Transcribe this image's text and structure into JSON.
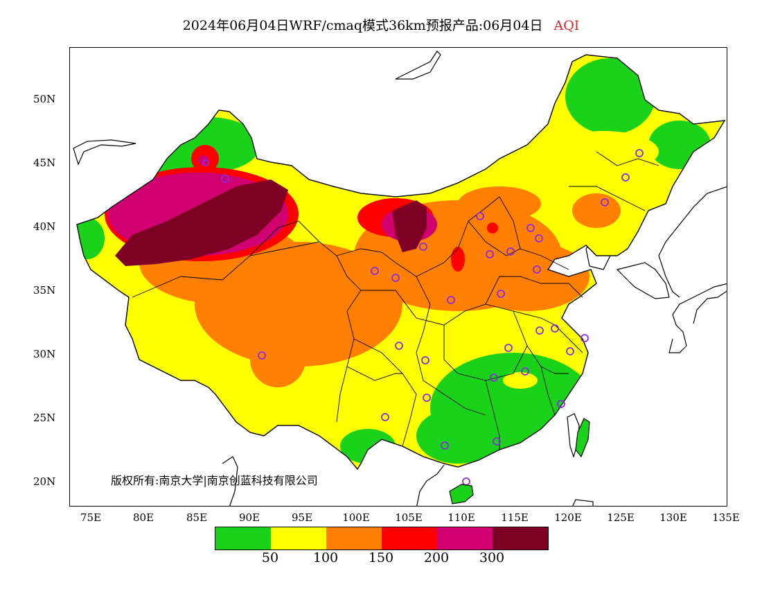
{
  "header": {
    "title": "2024年06月04日WRF/cmaq模式36km预报产品:06月04日",
    "variable": "AQI",
    "variable_color": "#e0202a"
  },
  "axes": {
    "lat_labels": [
      "50N",
      "45N",
      "40N",
      "35N",
      "30N",
      "25N",
      "20N"
    ],
    "lon_labels": [
      "75E",
      "80E",
      "85E",
      "90E",
      "95E",
      "100E",
      "105E",
      "110E",
      "115E",
      "120E",
      "125E",
      "130E",
      "135E"
    ]
  },
  "copyright": "版权所有:南京大学|南京创蓝科技有限公司",
  "legend": {
    "colors": [
      "#19d219",
      "#ffff00",
      "#ff8000",
      "#ff0000",
      "#d00070",
      "#7f0025"
    ],
    "ticks": [
      "50",
      "100",
      "150",
      "200",
      "300"
    ]
  },
  "icons": {
    "station": "purple-circle-icon"
  },
  "station_color": "#8a2be2"
}
